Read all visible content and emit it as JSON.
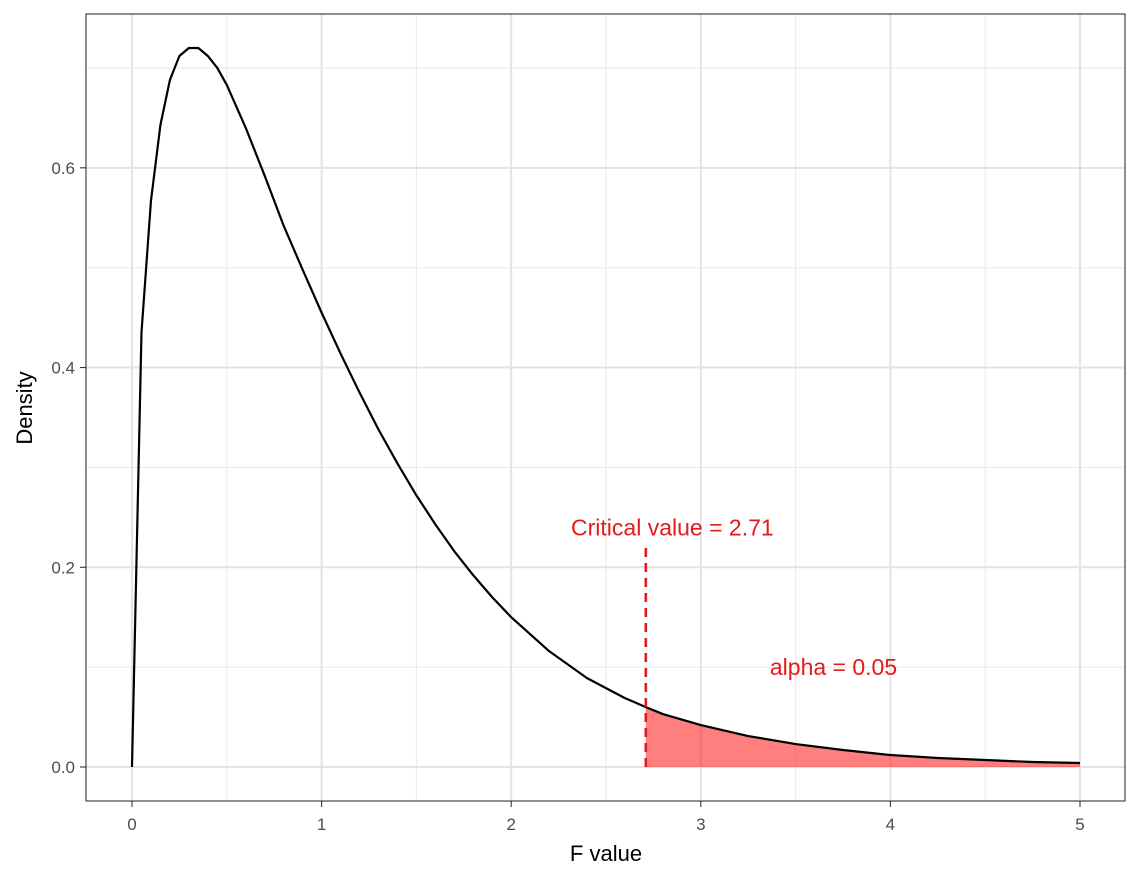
{
  "chart_data": {
    "type": "area",
    "distribution": "F",
    "df1": 3,
    "df2": 36,
    "xlabel": "F value",
    "ylabel": "Density",
    "xlim": [
      0,
      5
    ],
    "ylim": [
      0,
      0.72
    ],
    "x_ticks": [
      0,
      1,
      2,
      3,
      4,
      5
    ],
    "x_tick_labels": [
      "0",
      "1",
      "2",
      "3",
      "4",
      "5"
    ],
    "y_ticks": [
      0.0,
      0.2,
      0.4,
      0.6
    ],
    "y_tick_labels": [
      "0.0",
      "0.2",
      "0.4",
      "0.6"
    ],
    "grid": true,
    "theme": "bw",
    "x": [
      0.0,
      0.05,
      0.1,
      0.15,
      0.2,
      0.25,
      0.3,
      0.35,
      0.4,
      0.45,
      0.5,
      0.6,
      0.7,
      0.8,
      0.9,
      1.0,
      1.1,
      1.2,
      1.3,
      1.4,
      1.5,
      1.6,
      1.7,
      1.8,
      1.9,
      2.0,
      2.2,
      2.4,
      2.6,
      2.71,
      2.8,
      3.0,
      3.25,
      3.5,
      3.75,
      4.0,
      4.25,
      4.5,
      4.75,
      5.0
    ],
    "y": [
      0.0,
      0.435,
      0.567,
      0.643,
      0.688,
      0.712,
      0.72,
      0.72,
      0.712,
      0.7,
      0.683,
      0.64,
      0.592,
      0.542,
      0.498,
      0.455,
      0.414,
      0.375,
      0.338,
      0.304,
      0.272,
      0.243,
      0.216,
      0.192,
      0.17,
      0.15,
      0.116,
      0.089,
      0.069,
      0.06,
      0.053,
      0.042,
      0.031,
      0.023,
      0.017,
      0.012,
      0.009,
      0.007,
      0.005,
      0.004
    ],
    "line_color": "#000000",
    "critical_value": 2.71,
    "critical_line_color": "#e31a1c",
    "shade_from": 2.71,
    "shade_to": 5,
    "shade_color": "#ff0000",
    "shade_opacity": 0.5,
    "annotations": [
      {
        "text": "Critical value = 2.71",
        "x": 2.85,
        "y": 0.24,
        "color": "#e31a1c"
      },
      {
        "text": "alpha = 0.05",
        "x": 3.7,
        "y": 0.1,
        "color": "#e31a1c"
      }
    ]
  }
}
